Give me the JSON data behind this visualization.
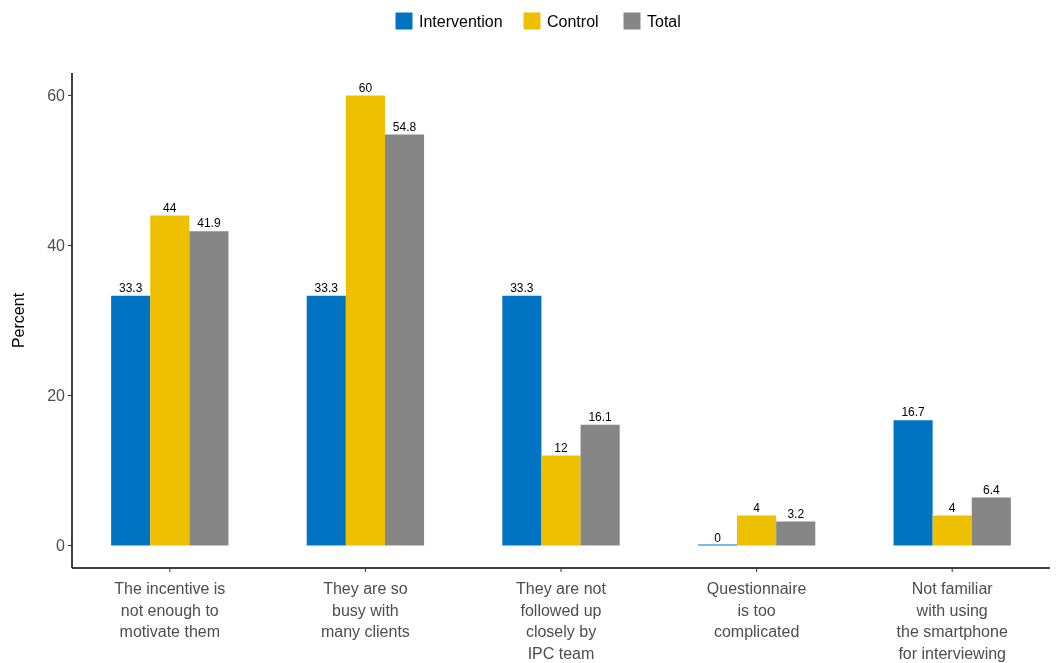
{
  "chart_data": {
    "type": "bar",
    "ylabel": "Percent",
    "categories": [
      "The incentive is\nnot enough to\nmotivate them",
      "They are so\nbusy with\nmany clients",
      "They are not\nfollowed up\nclosely by\nIPC team",
      "Questionnaire\nis too\ncomplicated",
      "Not familiar\nwith using\nthe smartphone\nfor interviewing"
    ],
    "series": [
      {
        "name": "Intervention",
        "color": "#0073c2",
        "values": [
          33.3,
          33.3,
          33.3,
          0,
          16.7
        ]
      },
      {
        "name": "Control",
        "color": "#efc000",
        "values": [
          44,
          60,
          12,
          4,
          4
        ]
      },
      {
        "name": "Total",
        "color": "#868686",
        "values": [
          41.9,
          54.8,
          16.1,
          3.2,
          6.4
        ]
      }
    ],
    "ylim": [
      -3,
      63
    ],
    "yticks": [
      0,
      20,
      40,
      60
    ],
    "data_labels": true,
    "legend": "top",
    "grid": false
  }
}
